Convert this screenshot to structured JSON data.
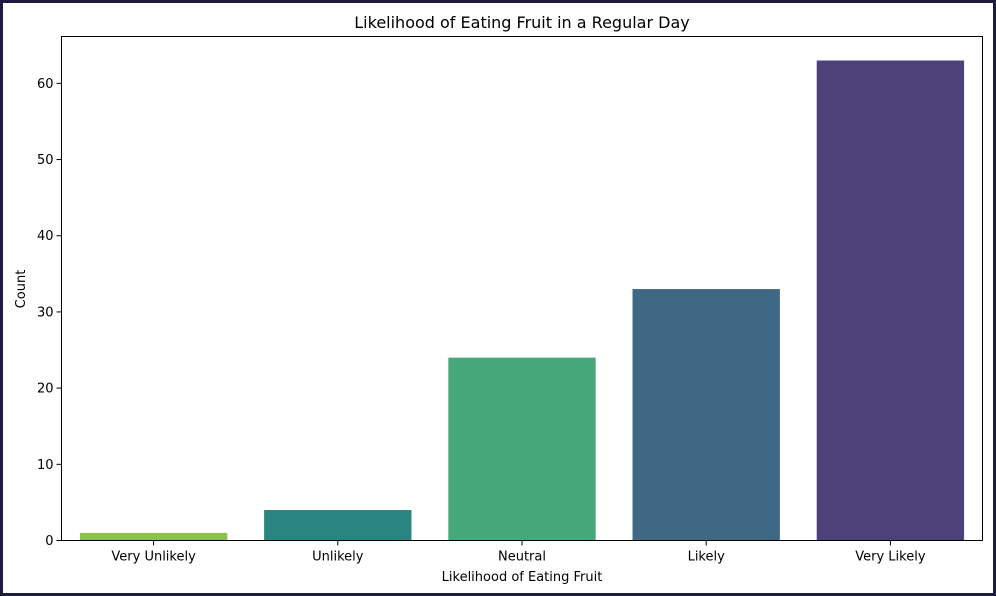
{
  "chart_data": {
    "type": "bar",
    "title": "Likelihood of Eating Fruit in a Regular Day",
    "xlabel": "Likelihood of Eating Fruit",
    "ylabel": "Count",
    "categories": [
      "Very Unlikely",
      "Unlikely",
      "Neutral",
      "Likely",
      "Very Likely"
    ],
    "values": [
      1,
      4,
      24,
      33,
      63
    ],
    "colors": [
      "#8bc34a",
      "#2a8480",
      "#46a87a",
      "#3e6884",
      "#4c4279"
    ],
    "ylim": [
      0,
      66.15
    ],
    "yticks": [
      0,
      10,
      20,
      30,
      40,
      50,
      60
    ],
    "grid": false,
    "legend": "none"
  }
}
